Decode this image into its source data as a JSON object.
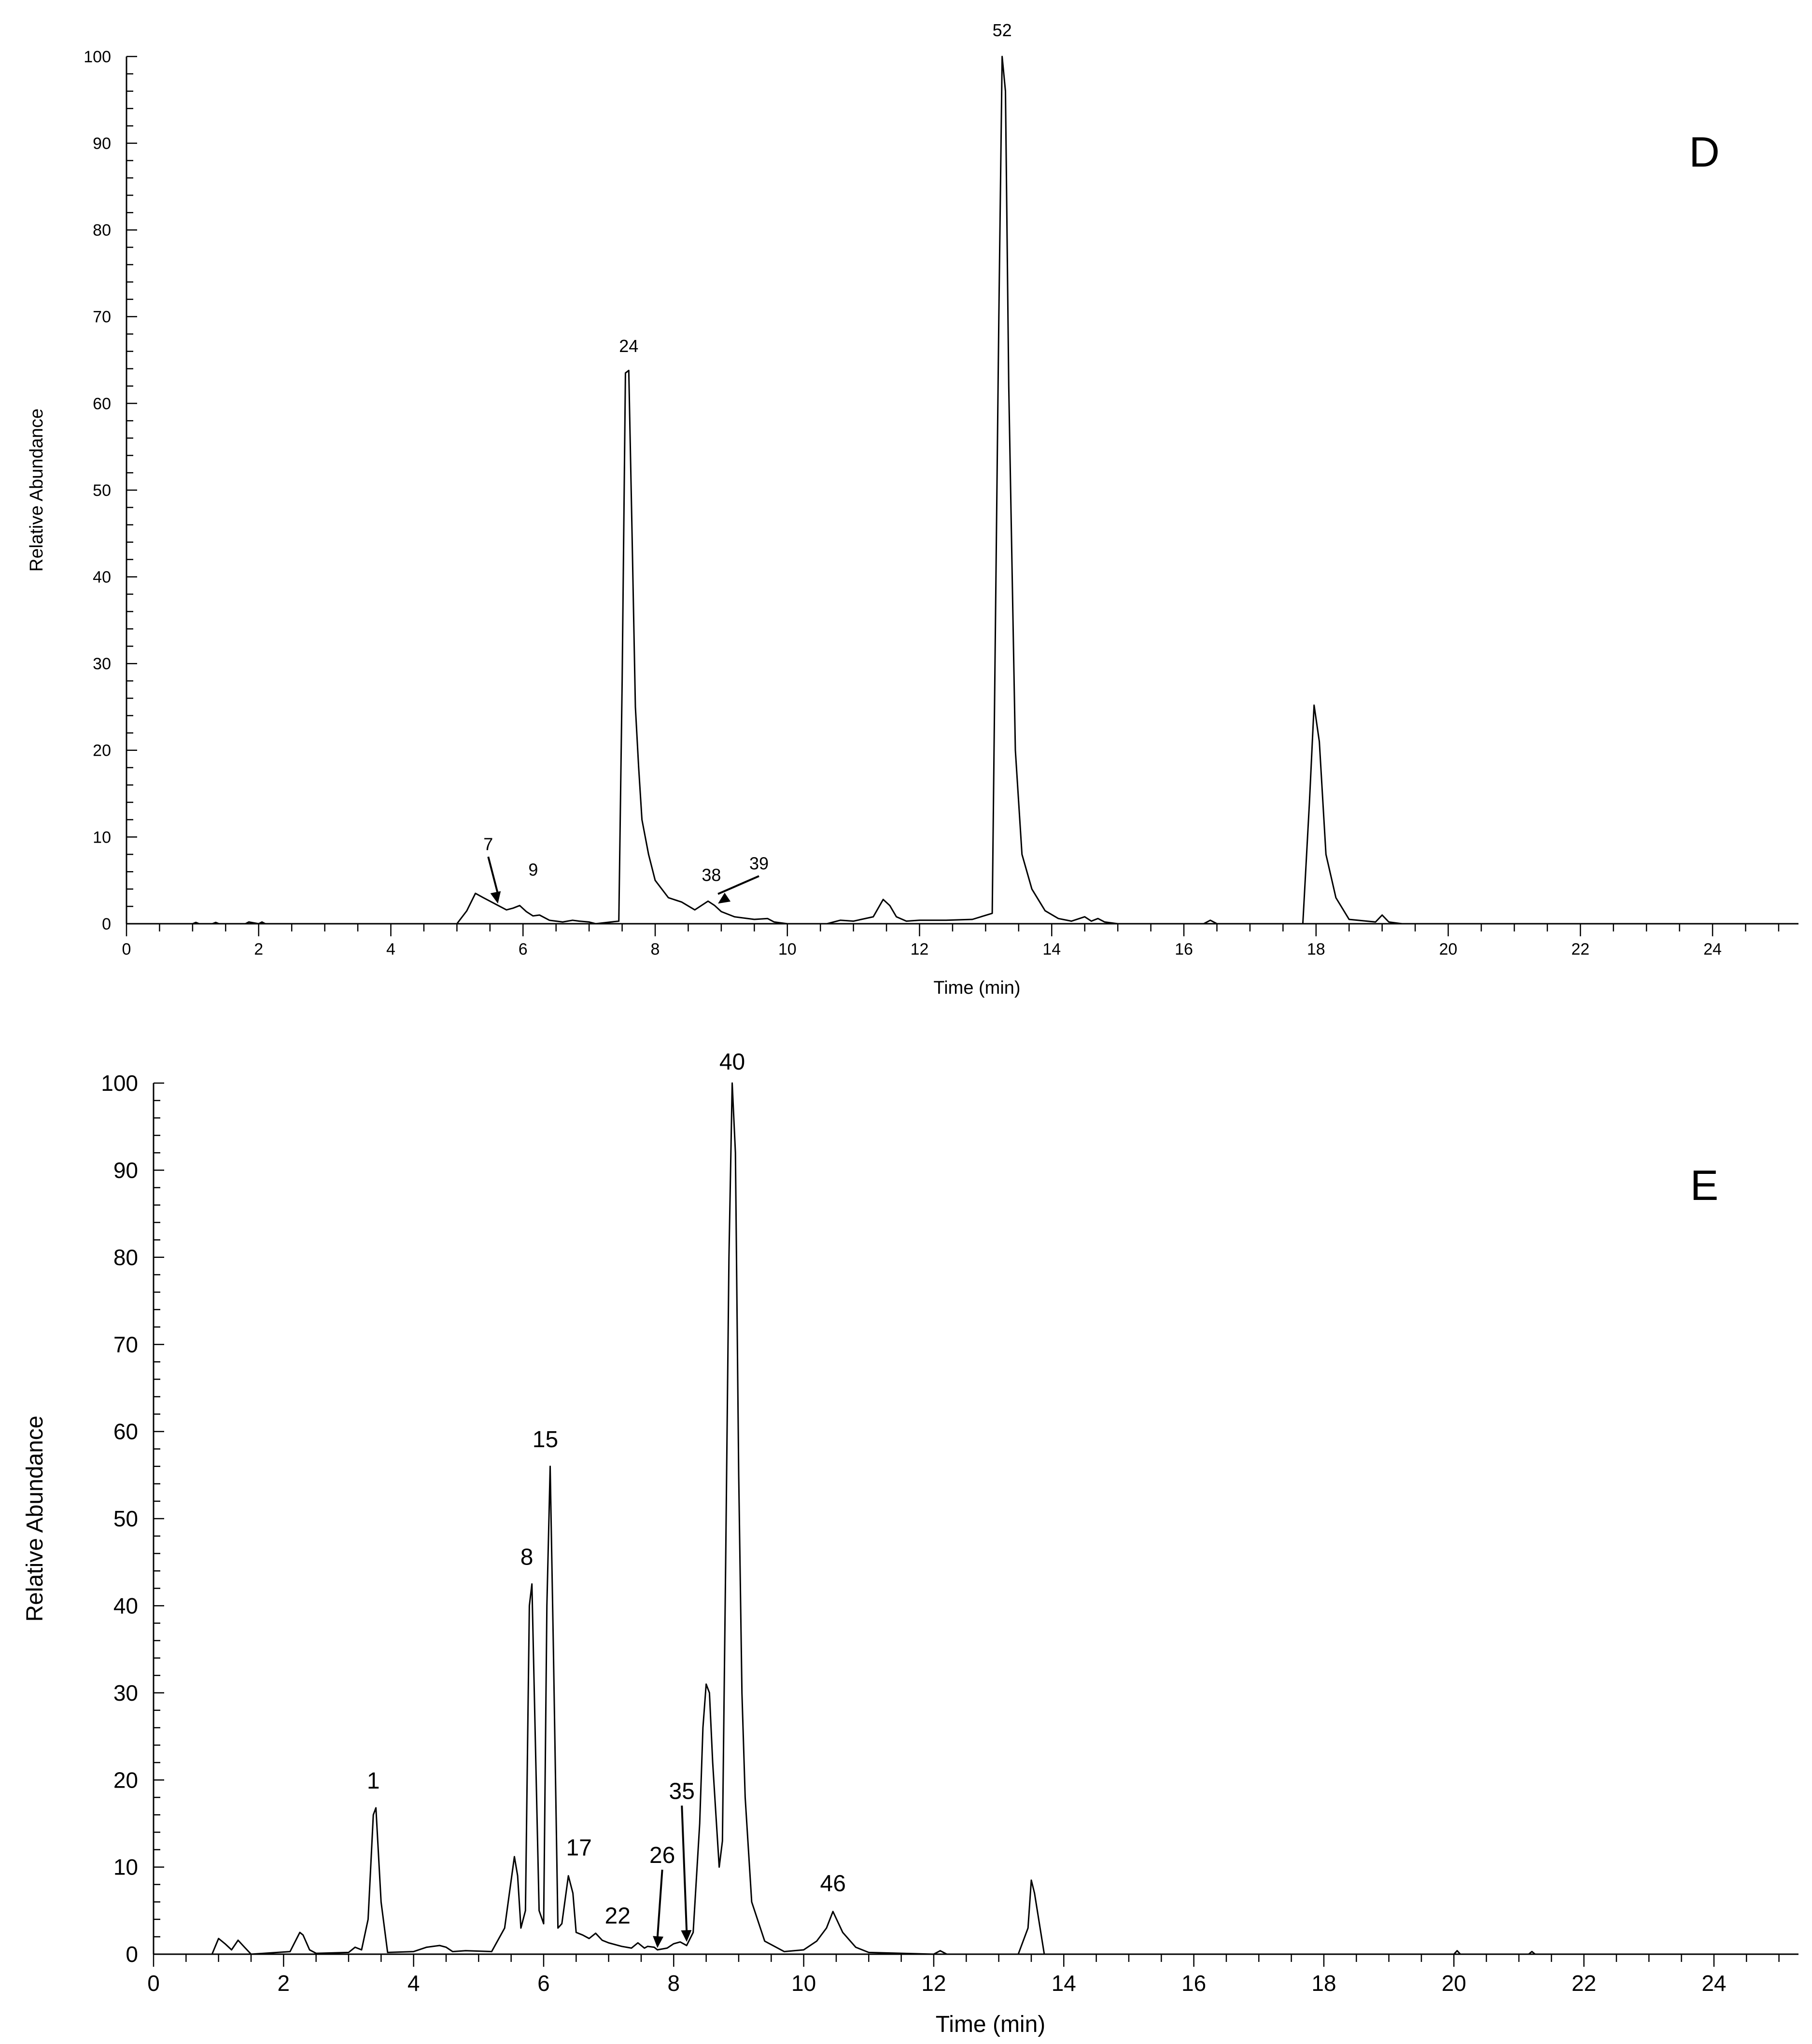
{
  "chart_data": [
    {
      "type": "line",
      "panel_letter": "D",
      "xlabel": "Time (min)",
      "ylabel": "Relative Abundance",
      "xlim": [
        0,
        25.3
      ],
      "ylim": [
        0,
        100
      ],
      "x_ticks": [
        "0",
        "2",
        "4",
        "6",
        "8",
        "10",
        "12",
        "14",
        "16",
        "18",
        "20",
        "22",
        "24"
      ],
      "y_ticks": [
        "0",
        "10",
        "20",
        "30",
        "40",
        "50",
        "60",
        "70",
        "80",
        "90",
        "100"
      ],
      "grid": false,
      "series": [
        {
          "x": [
            0,
            1.0,
            1.05,
            1.1,
            1.3,
            1.35,
            1.4,
            1.8,
            1.85,
            2.0,
            2.05,
            2.1,
            2.15,
            5.0,
            5.15,
            5.28,
            5.4,
            5.6,
            5.75,
            5.85,
            5.95,
            6.05,
            6.15,
            6.25,
            6.4,
            6.6,
            6.75,
            6.85,
            7.0,
            7.1,
            7.45,
            7.5,
            7.55,
            7.6,
            7.65,
            7.7,
            7.75,
            7.8,
            7.9,
            8.0,
            8.2,
            8.4,
            8.6,
            8.8,
            8.9,
            9.0,
            9.2,
            9.5,
            9.7,
            9.8,
            10.0,
            10.6,
            10.8,
            11.0,
            11.3,
            11.45,
            11.55,
            11.65,
            11.8,
            12.0,
            12.4,
            12.8,
            13.1,
            13.2,
            13.25,
            13.3,
            13.35,
            13.45,
            13.55,
            13.7,
            13.9,
            14.1,
            14.3,
            14.5,
            14.6,
            14.7,
            14.8,
            15.0,
            16.3,
            16.4,
            16.5,
            17.8,
            17.9,
            17.97,
            18.05,
            18.15,
            18.3,
            18.5,
            18.9,
            19.0,
            19.1,
            19.3,
            25.3
          ],
          "y": [
            0,
            0,
            0.15,
            0,
            0,
            0.15,
            0,
            0,
            0.2,
            0,
            0.2,
            0,
            0,
            0,
            1.5,
            3.5,
            3.0,
            2.2,
            1.6,
            1.8,
            2.1,
            1.4,
            0.9,
            1.0,
            0.4,
            0.2,
            0.4,
            0.3,
            0.2,
            0,
            0.3,
            28,
            63.5,
            63.8,
            45,
            25,
            18,
            12,
            8,
            5,
            3,
            2.5,
            1.6,
            2.6,
            2.1,
            1.4,
            0.8,
            0.5,
            0.6,
            0.2,
            0,
            0,
            0.4,
            0.3,
            0.8,
            2.8,
            2.1,
            0.8,
            0.3,
            0.4,
            0.4,
            0.5,
            1.2,
            70,
            100,
            96,
            62,
            20,
            8,
            4,
            1.5,
            0.6,
            0.3,
            0.8,
            0.3,
            0.6,
            0.2,
            0,
            0,
            0.4,
            0,
            0,
            14,
            25.2,
            21,
            8,
            3,
            0.5,
            0.2,
            1.0,
            0.2,
            0,
            0
          ]
        }
      ],
      "annotations": [
        {
          "label": "52",
          "x": 13.25,
          "y": 100,
          "arrow": false
        },
        {
          "label": "24",
          "x": 7.6,
          "y": 63.8,
          "arrow": false
        },
        {
          "label": "7",
          "x": 5.62,
          "y": 2.1,
          "arrow": true
        },
        {
          "label": "9",
          "x": 5.95,
          "y": 2.1,
          "arrow": false
        },
        {
          "label": "38",
          "x": 8.85,
          "y": 2.6,
          "arrow": false
        },
        {
          "label": "39",
          "x": 8.95,
          "y": 2.1,
          "arrow": true
        }
      ]
    },
    {
      "type": "line",
      "panel_letter": "E",
      "xlabel": "Time (min)",
      "ylabel": "Relative Abundance",
      "xlim": [
        0,
        25.3
      ],
      "ylim": [
        0,
        100
      ],
      "x_ticks": [
        "0",
        "2",
        "4",
        "6",
        "8",
        "10",
        "12",
        "14",
        "16",
        "18",
        "20",
        "22",
        "24"
      ],
      "y_ticks": [
        "0",
        "10",
        "20",
        "30",
        "40",
        "50",
        "60",
        "70",
        "80",
        "90",
        "100"
      ],
      "grid": false,
      "series": [
        {
          "x": [
            0,
            0.9,
            1.0,
            1.1,
            1.2,
            1.3,
            1.4,
            1.5,
            2.1,
            2.25,
            2.3,
            2.4,
            2.5,
            3.0,
            3.1,
            3.2,
            3.3,
            3.38,
            3.42,
            3.5,
            3.6,
            4.0,
            4.2,
            4.4,
            4.5,
            4.6,
            4.8,
            5.2,
            5.4,
            5.55,
            5.6,
            5.65,
            5.72,
            5.78,
            5.82,
            5.88,
            5.93,
            6.0,
            6.05,
            6.1,
            6.15,
            6.22,
            6.28,
            6.38,
            6.45,
            6.5,
            6.6,
            6.7,
            6.8,
            6.9,
            7.0,
            7.2,
            7.35,
            7.45,
            7.55,
            7.6,
            7.7,
            7.75,
            7.9,
            8.0,
            8.1,
            8.2,
            8.3,
            8.4,
            8.45,
            8.5,
            8.55,
            8.6,
            8.65,
            8.7,
            8.75,
            8.8,
            8.85,
            8.9,
            8.95,
            9.0,
            9.05,
            9.1,
            9.2,
            9.4,
            9.7,
            10.0,
            10.2,
            10.35,
            10.45,
            10.6,
            10.8,
            11.0,
            12.0,
            12.1,
            12.2,
            13.3,
            13.45,
            13.5,
            13.55,
            13.7,
            20.0,
            20.05,
            20.1,
            21.15,
            21.2,
            21.25,
            25.3
          ],
          "y": [
            0,
            0,
            1.8,
            1.2,
            0.5,
            1.6,
            0.8,
            0,
            0.3,
            2.5,
            2.2,
            0.5,
            0.1,
            0.2,
            0.8,
            0.5,
            4,
            16,
            16.8,
            6,
            0.2,
            0.3,
            0.8,
            1.0,
            0.8,
            0.3,
            0.4,
            0.3,
            3,
            11.2,
            9,
            3,
            5,
            40,
            42.5,
            22,
            5,
            3.5,
            40,
            56,
            35,
            3,
            3.5,
            9,
            7,
            2.5,
            2.2,
            1.8,
            2.4,
            1.6,
            1.3,
            0.9,
            0.7,
            1.3,
            0.7,
            0.9,
            0.8,
            0.5,
            0.7,
            1.2,
            1.4,
            1.0,
            2.5,
            15,
            26,
            31,
            30,
            22,
            16,
            10,
            13,
            45,
            80,
            100,
            92,
            55,
            30,
            18,
            6,
            1.5,
            0.3,
            0.5,
            1.5,
            3,
            4.9,
            2.5,
            0.8,
            0.2,
            0,
            0.4,
            0,
            0,
            3,
            8.5,
            7,
            0,
            0,
            0.4,
            0,
            0,
            0.3,
            0,
            0
          ]
        }
      ],
      "annotations": [
        {
          "label": "40",
          "x": 8.9,
          "y": 100,
          "arrow": false
        },
        {
          "label": "15",
          "x": 6.1,
          "y": 56,
          "arrow": false
        },
        {
          "label": "8",
          "x": 5.8,
          "y": 42.5,
          "arrow": false
        },
        {
          "label": "1",
          "x": 3.38,
          "y": 16.8,
          "arrow": false
        },
        {
          "label": "17",
          "x": 6.38,
          "y": 9,
          "arrow": false
        },
        {
          "label": "46",
          "x": 10.45,
          "y": 4.9,
          "arrow": false
        },
        {
          "label": "35",
          "x": 8.2,
          "y": 1.2,
          "arrow": true
        },
        {
          "label": "26",
          "x": 7.75,
          "y": 0.5,
          "arrow": true
        },
        {
          "label": "22",
          "x": 7.45,
          "y": 1.3,
          "arrow": false
        }
      ]
    }
  ]
}
